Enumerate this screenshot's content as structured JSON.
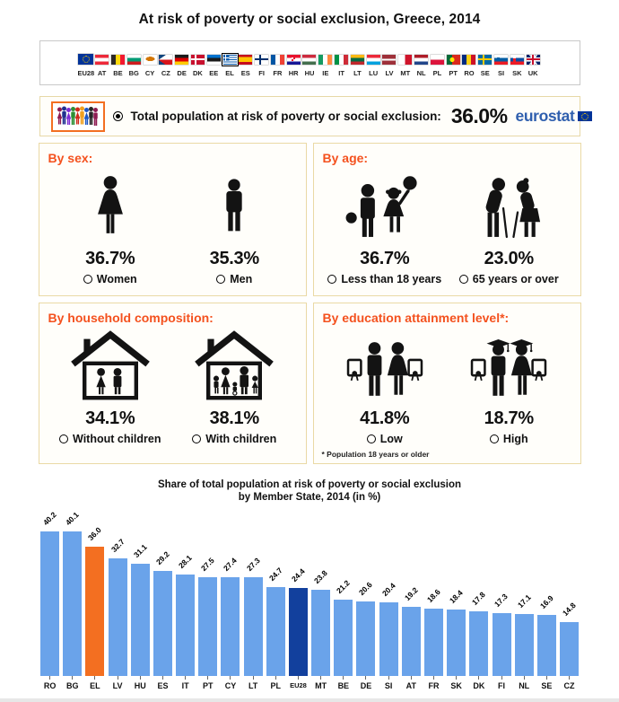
{
  "page_title": "At risk of poverty or social exclusion, Greece, 2014",
  "flags": {
    "selected": "EL",
    "items": [
      {
        "code": "EU28"
      },
      {
        "code": "AT"
      },
      {
        "code": "BE"
      },
      {
        "code": "BG"
      },
      {
        "code": "CY"
      },
      {
        "code": "CZ"
      },
      {
        "code": "DE"
      },
      {
        "code": "DK"
      },
      {
        "code": "EE"
      },
      {
        "code": "EL"
      },
      {
        "code": "ES"
      },
      {
        "code": "FI"
      },
      {
        "code": "FR"
      },
      {
        "code": "HR"
      },
      {
        "code": "HU"
      },
      {
        "code": "IE"
      },
      {
        "code": "IT"
      },
      {
        "code": "LT"
      },
      {
        "code": "LU"
      },
      {
        "code": "LV"
      },
      {
        "code": "MT"
      },
      {
        "code": "NL"
      },
      {
        "code": "PL"
      },
      {
        "code": "PT"
      },
      {
        "code": "RO"
      },
      {
        "code": "SE"
      },
      {
        "code": "SI"
      },
      {
        "code": "SK"
      },
      {
        "code": "UK"
      }
    ]
  },
  "total": {
    "label": "Total population at risk of poverty or social exclusion:",
    "value": "36.0%",
    "brand": "eurostat"
  },
  "panels": {
    "sex": {
      "title": "By sex:",
      "stats": [
        {
          "value": "36.7%",
          "label": "Women"
        },
        {
          "value": "35.3%",
          "label": "Men"
        }
      ]
    },
    "age": {
      "title": "By age:",
      "stats": [
        {
          "value": "36.7%",
          "label": "Less than 18 years"
        },
        {
          "value": "23.0%",
          "label": "65 years or over"
        }
      ]
    },
    "household": {
      "title": "By household composition:",
      "stats": [
        {
          "value": "34.1%",
          "label": "Without children"
        },
        {
          "value": "38.1%",
          "label": "With children"
        }
      ]
    },
    "education": {
      "title": "By education attainment level*:",
      "stats": [
        {
          "value": "41.8%",
          "label": "Low"
        },
        {
          "value": "18.7%",
          "label": "High"
        }
      ],
      "footnote": "* Population 18 years or older"
    }
  },
  "chart_data": {
    "type": "bar",
    "title": "Share of total population at risk of poverty or social exclusion",
    "subtitle": "by Member State, 2014 (in %)",
    "categories": [
      "RO",
      "BG",
      "EL",
      "LV",
      "HU",
      "ES",
      "IT",
      "PT",
      "CY",
      "LT",
      "PL",
      "EU28",
      "MT",
      "BE",
      "DE",
      "SI",
      "AT",
      "FR",
      "SK",
      "DK",
      "FI",
      "NL",
      "SE",
      "CZ"
    ],
    "values": [
      40.2,
      40.1,
      36.0,
      32.7,
      31.1,
      29.2,
      28.1,
      27.5,
      27.4,
      27.3,
      24.7,
      24.4,
      23.8,
      21.2,
      20.6,
      20.4,
      19.2,
      18.6,
      18.4,
      17.8,
      17.3,
      17.1,
      16.9,
      14.8
    ],
    "ylim": [
      0,
      41
    ],
    "grid": false,
    "legend": "none",
    "value_label_rotation_deg": -45,
    "colors": {
      "default": "#6aa3ea",
      "highlight_EL": "#f36f21",
      "highlight_EU28": "#12409d"
    }
  },
  "theme_colors": {
    "panel_header_orange": "#f4511e",
    "panel_border_tan": "#ead9a5",
    "eurostat_blue": "#2f5fae"
  }
}
